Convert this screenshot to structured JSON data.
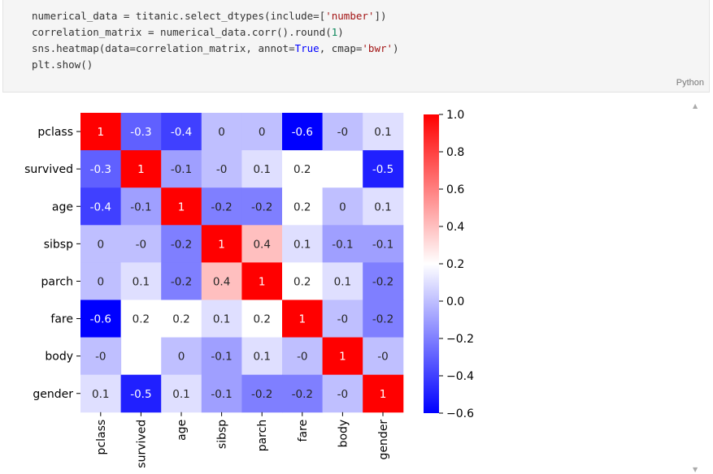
{
  "code_cell": {
    "lines": [
      [
        {
          "t": "numerical_data = titanic.select_dtypes(include=["
        },
        {
          "t": "'number'",
          "c": "s"
        },
        {
          "t": "])"
        }
      ],
      [
        {
          "t": "correlation_matrix = numerical_data.corr().round("
        },
        {
          "t": "1",
          "c": "n"
        },
        {
          "t": ")"
        }
      ],
      [
        {
          "t": "sns.heatmap(data=correlation_matrix, annot="
        },
        {
          "t": "True",
          "c": "k"
        },
        {
          "t": ", cmap="
        },
        {
          "t": "'bwr'",
          "c": "s"
        },
        {
          "t": ")"
        }
      ],
      [
        {
          "t": "plt.show()"
        }
      ]
    ],
    "language": "Python"
  },
  "chart_data": {
    "type": "heatmap",
    "cmap": "bwr",
    "rows": [
      "pclass",
      "survived",
      "age",
      "sibsp",
      "parch",
      "fare",
      "body",
      "gender"
    ],
    "cols": [
      "pclass",
      "survived",
      "age",
      "sibsp",
      "parch",
      "fare",
      "body",
      "gender"
    ],
    "values": [
      [
        1,
        -0.3,
        -0.4,
        0,
        0,
        -0.6,
        0,
        0.1
      ],
      [
        -0.3,
        1,
        -0.1,
        0,
        0.1,
        0.2,
        null,
        -0.5
      ],
      [
        -0.4,
        -0.1,
        1,
        -0.2,
        -0.2,
        0.2,
        0,
        0.1
      ],
      [
        0,
        0,
        -0.2,
        1,
        0.4,
        0.1,
        -0.1,
        -0.1
      ],
      [
        0,
        0.1,
        -0.2,
        0.4,
        1,
        0.2,
        0.1,
        -0.2
      ],
      [
        -0.6,
        0.2,
        0.2,
        0.1,
        0.2,
        1,
        0,
        -0.2
      ],
      [
        0,
        null,
        0,
        -0.1,
        0.1,
        0,
        1,
        0
      ],
      [
        0.1,
        -0.5,
        0.1,
        -0.1,
        -0.2,
        -0.2,
        0,
        1
      ]
    ],
    "annotations": [
      [
        "1",
        "-0.3",
        "-0.4",
        "0",
        "0",
        "-0.6",
        "-0",
        "0.1"
      ],
      [
        "-0.3",
        "1",
        "-0.1",
        "-0",
        "0.1",
        "0.2",
        "",
        "-0.5"
      ],
      [
        "-0.4",
        "-0.1",
        "1",
        "-0.2",
        "-0.2",
        "0.2",
        "0",
        "0.1"
      ],
      [
        "0",
        "-0",
        "-0.2",
        "1",
        "0.4",
        "0.1",
        "-0.1",
        "-0.1"
      ],
      [
        "0",
        "0.1",
        "-0.2",
        "0.4",
        "1",
        "0.2",
        "0.1",
        "-0.2"
      ],
      [
        "-0.6",
        "0.2",
        "0.2",
        "0.1",
        "0.2",
        "1",
        "-0",
        "-0.2"
      ],
      [
        "-0",
        "",
        "0",
        "-0.1",
        "0.1",
        "-0",
        "1",
        "-0"
      ],
      [
        "0.1",
        "-0.5",
        "0.1",
        "-0.1",
        "-0.2",
        "-0.2",
        "-0",
        "1"
      ]
    ],
    "colorbar": {
      "vmin": -0.6,
      "vmax": 1.0,
      "ticks": [
        1.0,
        0.8,
        0.6,
        0.4,
        0.2,
        0.0,
        -0.2,
        -0.4,
        -0.6
      ],
      "tick_labels": [
        "1.0",
        "0.8",
        "0.6",
        "0.4",
        "0.2",
        "0.0",
        "−0.2",
        "−0.4",
        "−0.6"
      ]
    }
  }
}
